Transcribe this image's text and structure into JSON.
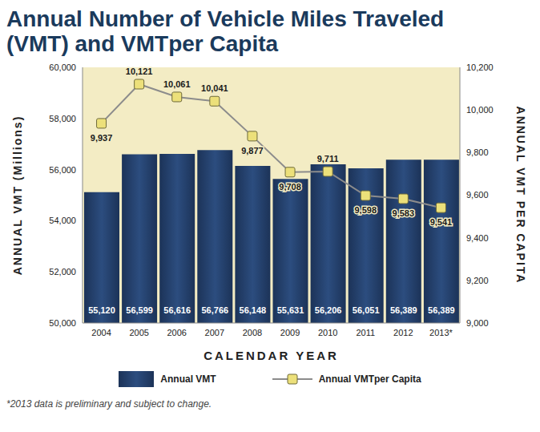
{
  "chart_data": {
    "type": "bar",
    "title": "Annual Number of Vehicle Miles Traveled (VMT) and VMTper Capita",
    "x_label": "CALENDAR YEAR",
    "y_label": "ANNUAL VMT (Millions)",
    "y2_label": "ANNUAL VMT PER CAPITA",
    "annotation": "*2013 data is preliminary and subject to change.",
    "categories": [
      "2004",
      "2005",
      "2006",
      "2007",
      "2008",
      "2009",
      "2010",
      "2011",
      "2012",
      "2013*"
    ],
    "series": [
      {
        "name": "Annual VMT",
        "type": "bar",
        "color": "#2c4d7f",
        "values": [
          55120,
          56599,
          56616,
          56766,
          56148,
          55631,
          56206,
          56051,
          56389,
          56389
        ],
        "value_labels": [
          "55,120",
          "56,599",
          "56,616",
          "56,766",
          "56,148",
          "55,631",
          "56,206",
          "56,051",
          "56,389",
          "56,389"
        ]
      },
      {
        "name": "Annual VMTper Capita",
        "type": "line",
        "axis": "y2",
        "color": "#8c8c8c",
        "marker": "square",
        "values": [
          9937,
          10121,
          10061,
          10041,
          9877,
          9708,
          9711,
          9598,
          9583,
          9541
        ],
        "value_labels": [
          "9,937",
          "10,121",
          "10,061",
          "10,041",
          "9,877",
          "9,708",
          "9,711",
          "9,598",
          "9,583",
          "9,541"
        ]
      }
    ],
    "ylim": [
      50000,
      60000
    ],
    "yticks": [
      {
        "value": 50000,
        "label": "50,000"
      },
      {
        "value": 52000,
        "label": "52,000"
      },
      {
        "value": 54000,
        "label": "54,000"
      },
      {
        "value": 56000,
        "label": "56,000"
      },
      {
        "value": 58000,
        "label": "58,000"
      },
      {
        "value": 60000,
        "label": "60,000"
      }
    ],
    "y2lim": [
      9000,
      10200
    ],
    "y2ticks": [
      {
        "value": 9000,
        "label": "9,000"
      },
      {
        "value": 9200,
        "label": "9,200"
      },
      {
        "value": 9400,
        "label": "9,400"
      },
      {
        "value": 9600,
        "label": "9,600"
      },
      {
        "value": 9800,
        "label": "9,800"
      },
      {
        "value": 10000,
        "label": "10,000"
      },
      {
        "value": 10200,
        "label": "10,200"
      }
    ],
    "data_labels": true,
    "legend": "bottom",
    "grid": false
  }
}
